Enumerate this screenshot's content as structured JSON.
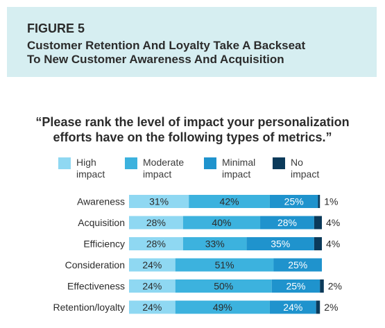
{
  "header": {
    "figure_label": "FIGURE 5",
    "title_line1": "Customer Retention And Loyalty Take A Backseat",
    "title_line2": "To New Customer Awareness And Acquisition"
  },
  "question": {
    "line1": "“Please rank the level of impact your personalization",
    "line2": "efforts have on the following types of metrics.”"
  },
  "chart_data": {
    "type": "bar",
    "orientation": "horizontal",
    "stacked": true,
    "unit": "%",
    "legend_placement": "top",
    "categories": [
      "Awareness",
      "Acquisition",
      "Efficiency",
      "Consideration",
      "Effectiveness",
      "Retention/loyalty"
    ],
    "series": [
      {
        "name": "High\nimpact",
        "color": "#8fd8f2",
        "values": [
          31,
          28,
          28,
          24,
          24,
          24
        ]
      },
      {
        "name": "Moderate\nimpact",
        "color": "#3cb2de",
        "values": [
          42,
          40,
          33,
          51,
          50,
          49
        ]
      },
      {
        "name": "Minimal\nimpact",
        "color": "#1f93cd",
        "values": [
          25,
          28,
          35,
          25,
          25,
          24
        ]
      },
      {
        "name": "No\nimpact",
        "color": "#0b3a5a",
        "values": [
          1,
          4,
          4,
          0,
          2,
          2
        ]
      }
    ],
    "labels": [
      [
        "31%",
        "42%",
        "25%",
        "1%"
      ],
      [
        "28%",
        "40%",
        "28%",
        "4%"
      ],
      [
        "28%",
        "33%",
        "35%",
        "4%"
      ],
      [
        "24%",
        "51%",
        "25%",
        ""
      ],
      [
        "24%",
        "50%",
        "25%",
        "2%"
      ],
      [
        "24%",
        "49%",
        "24%",
        "2%"
      ]
    ],
    "xlim": [
      0,
      100
    ],
    "grid": false
  }
}
